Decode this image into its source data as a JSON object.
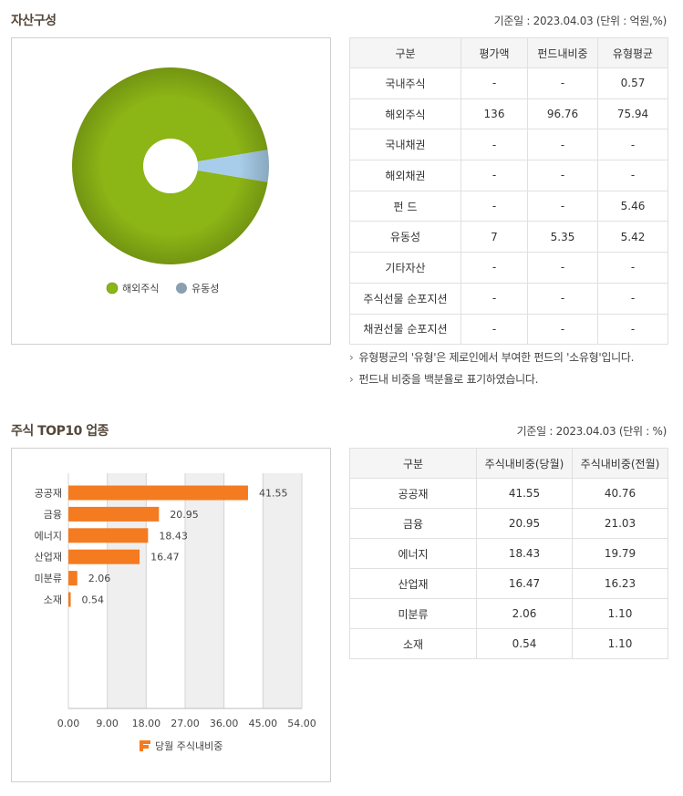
{
  "asset": {
    "title": "자산구성",
    "base_date": "기준일 : 2023.04.03 (단위 : 억원,%)",
    "table": {
      "headers": [
        "구분",
        "평가액",
        "펀드내비중",
        "유형평균"
      ],
      "rows": [
        [
          "국내주식",
          "-",
          "-",
          "0.57"
        ],
        [
          "해외주식",
          "136",
          "96.76",
          "75.94"
        ],
        [
          "국내채권",
          "-",
          "-",
          "-"
        ],
        [
          "해외채권",
          "-",
          "-",
          "-"
        ],
        [
          "펀 드",
          "-",
          "-",
          "5.46"
        ],
        [
          "유동성",
          "7",
          "5.35",
          "5.42"
        ],
        [
          "기타자산",
          "-",
          "-",
          "-"
        ],
        [
          "주식선물 순포지션",
          "-",
          "-",
          "-"
        ],
        [
          "채권선물 순포지션",
          "-",
          "-",
          "-"
        ]
      ]
    },
    "notes": [
      "유형평균의 '유형'은 제로인에서 부여한 펀드의 '소유형'입니다.",
      "펀드내 비중을 백분율로 표기하였습니다."
    ]
  },
  "sector": {
    "title": "주식 TOP10 업종",
    "base_date": "기준일 : 2023.04.03 (단위 : %)",
    "table": {
      "headers": [
        "구분",
        "주식내비중(당월)",
        "주식내비중(전월)"
      ],
      "rows": [
        [
          "공공재",
          "41.55",
          "40.76"
        ],
        [
          "금융",
          "20.95",
          "21.03"
        ],
        [
          "에너지",
          "18.43",
          "19.79"
        ],
        [
          "산업재",
          "16.47",
          "16.23"
        ],
        [
          "미분류",
          "2.06",
          "1.10"
        ],
        [
          "소재",
          "0.54",
          "1.10"
        ]
      ]
    }
  },
  "chart_data": [
    {
      "type": "pie",
      "donut": true,
      "labels": [
        "해외주식",
        "유동성"
      ],
      "values": [
        96.76,
        5.35
      ],
      "colors": [
        "#8cb516",
        "#a8cdea"
      ],
      "legend": [
        "해외주식",
        "유동성"
      ],
      "legend_position": "bottom"
    },
    {
      "type": "bar",
      "orientation": "horizontal",
      "categories": [
        "공공재",
        "금융",
        "에너지",
        "산업재",
        "미분류",
        "소재"
      ],
      "series": [
        {
          "name": "당월 주식내비중",
          "values": [
            41.55,
            20.95,
            18.43,
            16.47,
            2.06,
            0.54
          ],
          "labels": [
            "41.55",
            "20.95",
            "18.43",
            "16.47",
            "2.06",
            "0.54"
          ]
        }
      ],
      "xlim": [
        0,
        54
      ],
      "ticks": [
        "0.00",
        "9.00",
        "18.00",
        "27.00",
        "36.00",
        "45.00",
        "54.00"
      ],
      "tick_values": [
        0,
        9,
        18,
        27,
        36,
        45,
        54
      ],
      "bar_color": "#f47b20",
      "legend_position": "bottom"
    }
  ]
}
